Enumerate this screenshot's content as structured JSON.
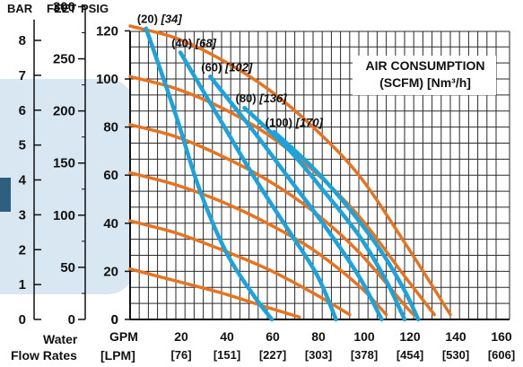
{
  "chart_data": {
    "type": "line",
    "x_unit_label": "GPM",
    "x_alt_unit_label": "[LPM]",
    "x_label_line1": "Water",
    "x_label_line2": "Flow Rates",
    "x_ticks_gpm": [
      20,
      40,
      60,
      80,
      100,
      120,
      140,
      160
    ],
    "x_ticks_lpm": [
      "[76]",
      "[151]",
      "[227]",
      "[303]",
      "[378]",
      "[454]",
      "[530]",
      "[606]"
    ],
    "xlim": [
      0,
      160
    ],
    "ylim_psig": [
      0,
      125
    ],
    "y_axes": {
      "bar": {
        "label": "BAR",
        "ticks": [
          0,
          1,
          2,
          3,
          4,
          5,
          6,
          7,
          8
        ],
        "psig_per_unit": 14.5038
      },
      "feet": {
        "label": "FEET",
        "ticks": [
          0,
          50,
          100,
          150,
          200,
          250,
          300
        ],
        "psig_per_unit": 0.4335
      },
      "psig": {
        "label": "PSIG",
        "ticks": [
          0,
          20,
          40,
          60,
          80,
          100,
          120
        ]
      }
    },
    "legend": {
      "title_line1": "AIR CONSUMPTION",
      "title_line2": "(SCFM) [Nm³/h]"
    },
    "performance_curves": {
      "color": "#e8731e",
      "series": [
        {
          "inlet_psig": 120,
          "points": [
            [
              0,
              122
            ],
            [
              20,
              117
            ],
            [
              40,
              108
            ],
            [
              60,
              96
            ],
            [
              80,
              80
            ],
            [
              100,
              60
            ],
            [
              120,
              32
            ],
            [
              140,
              2
            ]
          ]
        },
        {
          "inlet_psig": 100,
          "points": [
            [
              0,
              101
            ],
            [
              20,
              96
            ],
            [
              40,
              88
            ],
            [
              60,
              77
            ],
            [
              80,
              62
            ],
            [
              100,
              43
            ],
            [
              120,
              18
            ],
            [
              133,
              2
            ]
          ]
        },
        {
          "inlet_psig": 80,
          "points": [
            [
              0,
              81
            ],
            [
              20,
              76
            ],
            [
              40,
              68
            ],
            [
              60,
              58
            ],
            [
              80,
              45
            ],
            [
              100,
              28
            ],
            [
              120,
              6
            ],
            [
              124,
              2
            ]
          ]
        },
        {
          "inlet_psig": 60,
          "points": [
            [
              0,
              61
            ],
            [
              20,
              56
            ],
            [
              40,
              49
            ],
            [
              60,
              40
            ],
            [
              80,
              29
            ],
            [
              100,
              14
            ],
            [
              112,
              2
            ]
          ]
        },
        {
          "inlet_psig": 40,
          "points": [
            [
              0,
              41
            ],
            [
              20,
              36
            ],
            [
              40,
              29
            ],
            [
              60,
              21
            ],
            [
              80,
              11
            ],
            [
              96,
              2
            ]
          ]
        },
        {
          "inlet_psig": 20,
          "points": [
            [
              0,
              21
            ],
            [
              20,
              16
            ],
            [
              40,
              11
            ],
            [
              60,
              5
            ],
            [
              74,
              1
            ]
          ]
        }
      ]
    },
    "air_consumption_curves": {
      "color": "#1aa3dc",
      "series": [
        {
          "name": "(20)",
          "name_alt": "[34]",
          "points": [
            [
              7,
              121
            ],
            [
              20,
              85
            ],
            [
              30,
              55
            ],
            [
              42,
              28
            ],
            [
              54,
              10
            ],
            [
              62,
              0
            ]
          ]
        },
        {
          "name": "(40)",
          "name_alt": "[68]",
          "points": [
            [
              22,
              111
            ],
            [
              40,
              82
            ],
            [
              55,
              58
            ],
            [
              70,
              36
            ],
            [
              82,
              18
            ],
            [
              90,
              0
            ]
          ]
        },
        {
          "name": "(60)",
          "name_alt": "[102]",
          "points": [
            [
              35,
              101
            ],
            [
              55,
              77
            ],
            [
              70,
              58
            ],
            [
              85,
              39
            ],
            [
              100,
              18
            ],
            [
              110,
              0
            ]
          ]
        },
        {
          "name": "(80)",
          "name_alt": "[136]",
          "points": [
            [
              50,
              88
            ],
            [
              70,
              70
            ],
            [
              85,
              53
            ],
            [
              100,
              35
            ],
            [
              112,
              16
            ],
            [
              120,
              0
            ]
          ]
        },
        {
          "name": "(100)",
          "name_alt": "[170]",
          "points": [
            [
              63,
              78
            ],
            [
              80,
              63
            ],
            [
              95,
              47
            ],
            [
              110,
              28
            ],
            [
              120,
              12
            ],
            [
              126,
              0
            ]
          ]
        }
      ]
    }
  }
}
